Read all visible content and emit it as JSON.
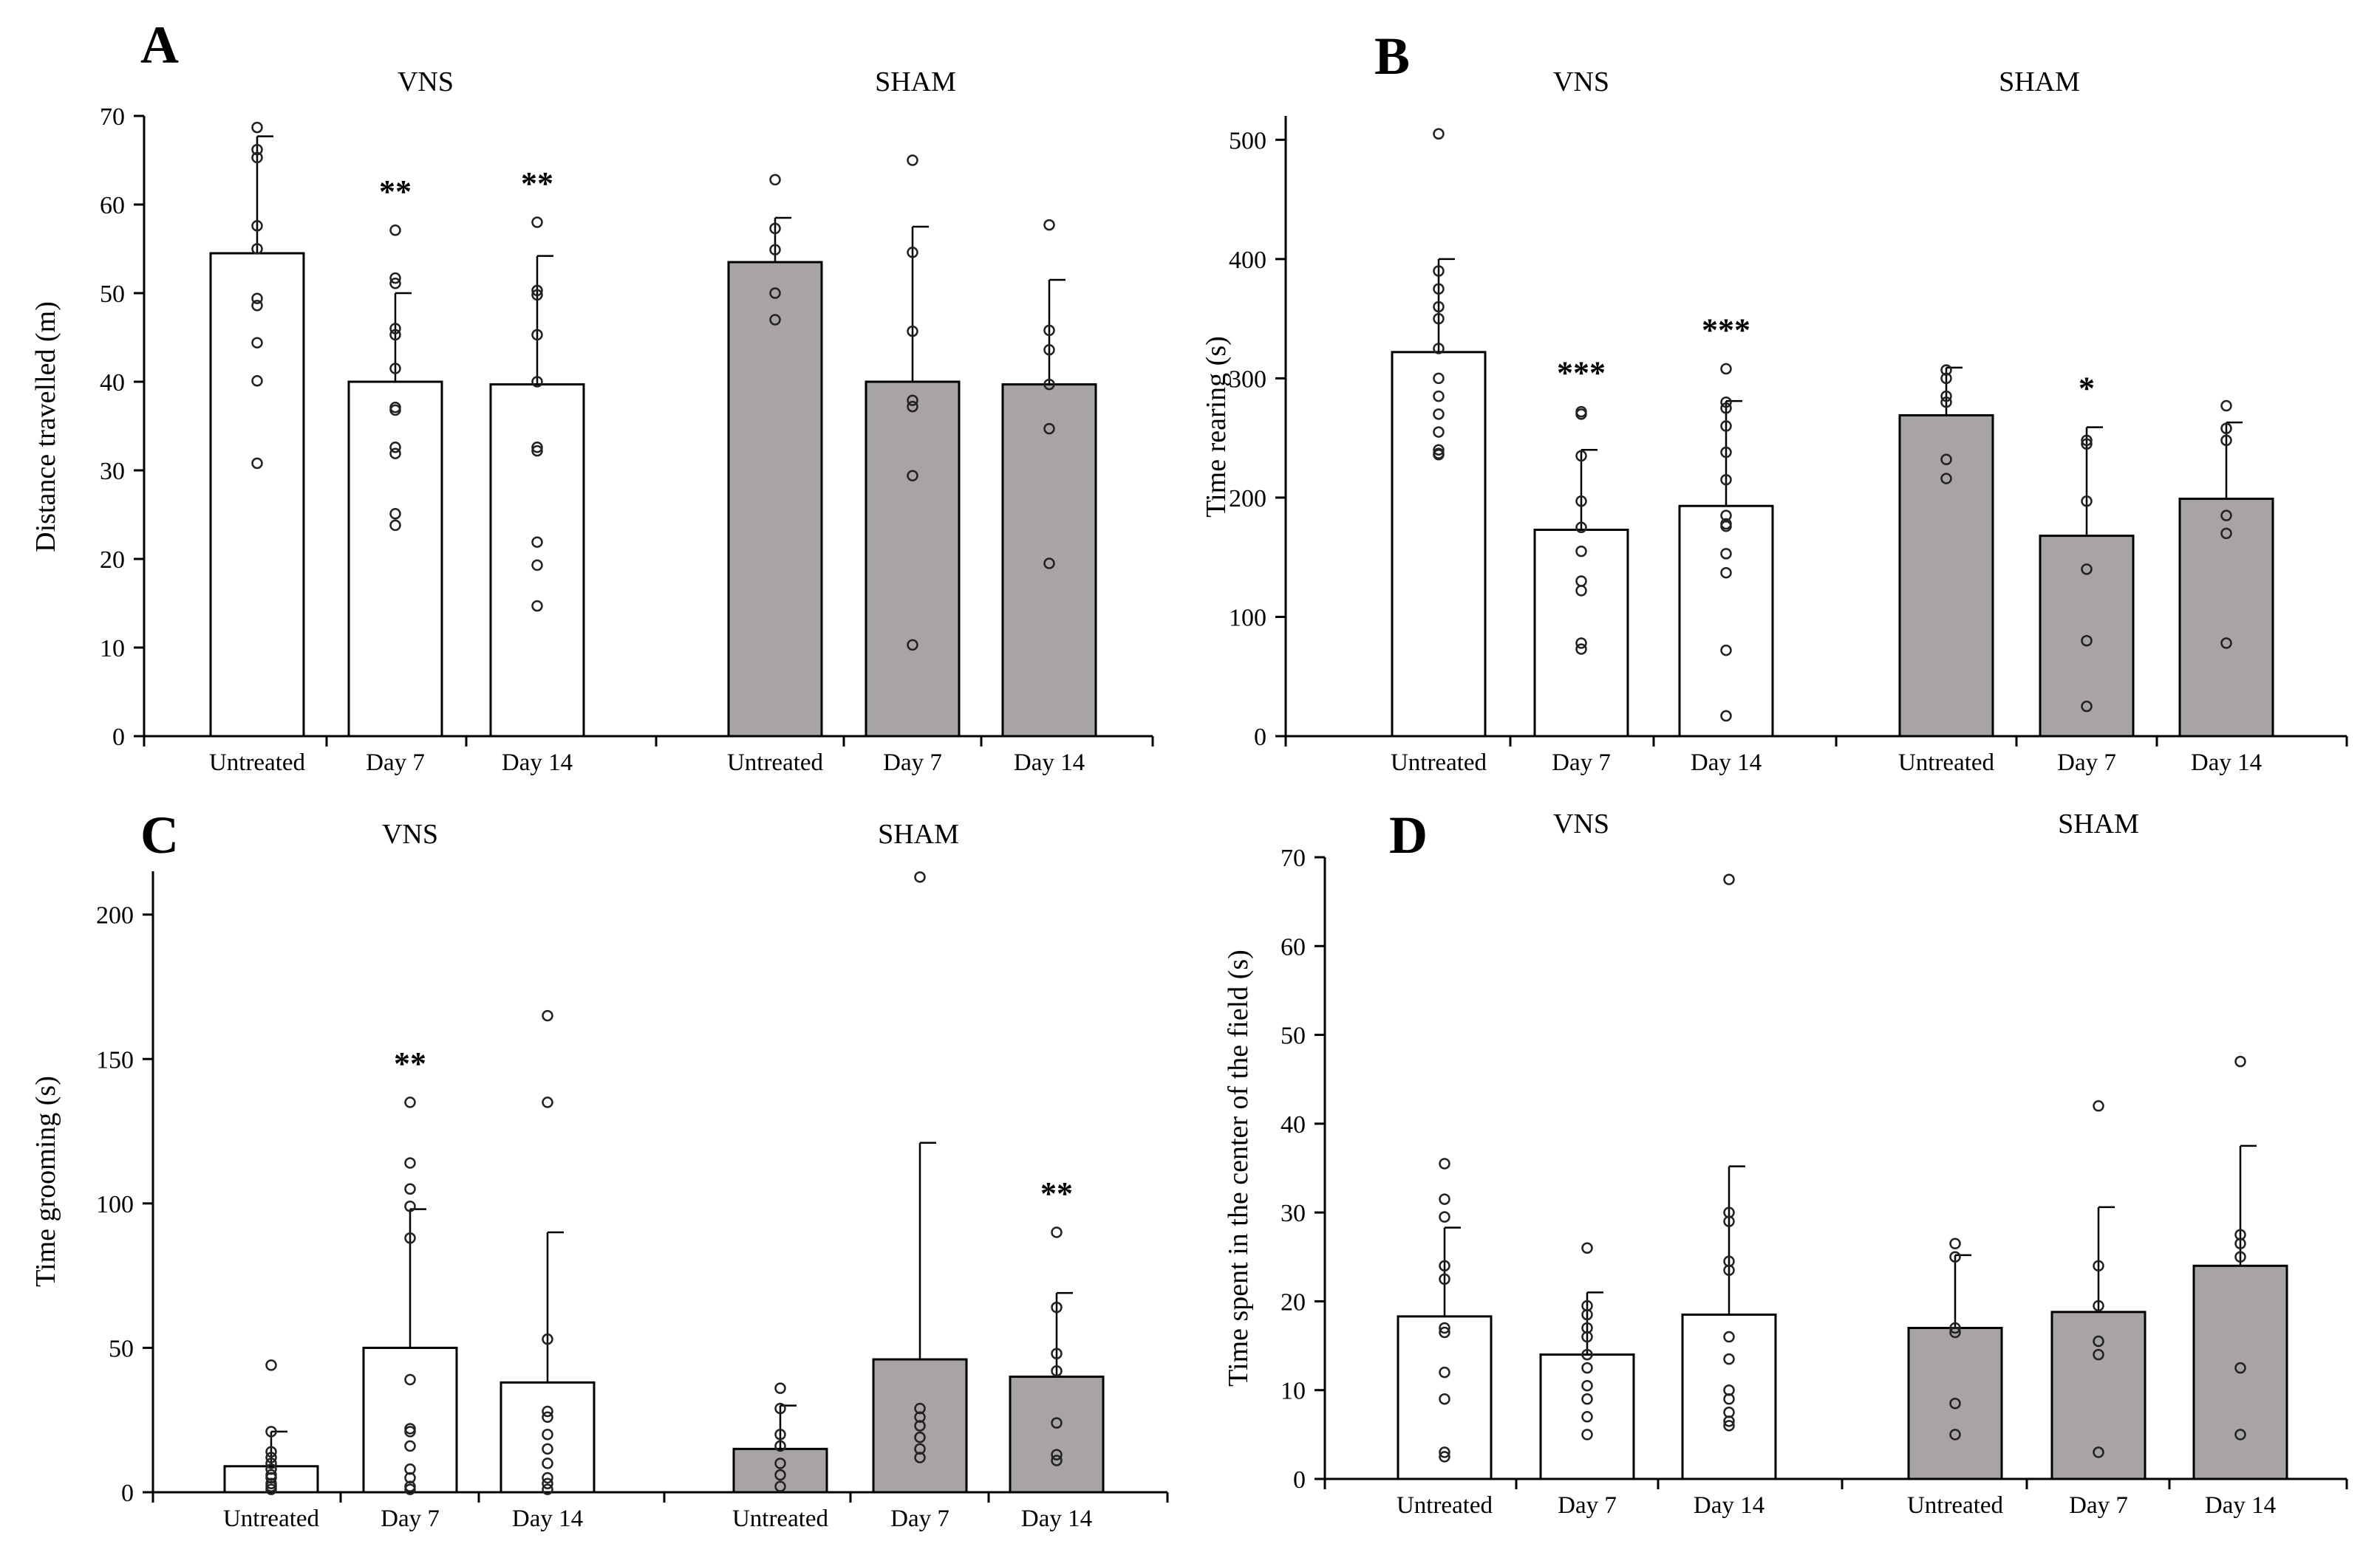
{
  "figure": {
    "colors": {
      "vns_fill": "#ffffff",
      "sham_fill": "#a8a4a3",
      "stroke": "#000000"
    }
  },
  "chart_data": [
    {
      "type": "bar",
      "panel": "A",
      "title": "",
      "xlabel": "",
      "ylabel": "Distance travelled (m)",
      "ylim": [
        0,
        70
      ],
      "yticks": [
        0,
        10,
        20,
        30,
        40,
        50,
        60,
        70
      ],
      "groups": [
        {
          "name": "VNS",
          "color": "#ffffff",
          "categories": [
            "Untreated",
            "Day 7",
            "Day 14"
          ],
          "values": [
            54.5,
            40,
            39.7
          ],
          "errors": [
            13.2,
            10,
            14.5
          ],
          "significance": [
            "",
            "**",
            "**"
          ],
          "points": [
            [
              68.7,
              66.2,
              65.3,
              57.6,
              55.0,
              49.4,
              48.6,
              44.4,
              40.1,
              30.8
            ],
            [
              57.1,
              51.7,
              51.1,
              46.0,
              45.3,
              41.5,
              37.1,
              36.8,
              32.6,
              31.9,
              25.1,
              23.8
            ],
            [
              58.0,
              50.3,
              49.8,
              45.3,
              40.0,
              32.6,
              32.2,
              21.9,
              19.3,
              14.7
            ]
          ]
        },
        {
          "name": "SHAM",
          "color": "#a8a4a3",
          "categories": [
            "Untreated",
            "Day 7",
            "Day 14"
          ],
          "values": [
            53.5,
            40,
            39.7
          ],
          "errors": [
            5,
            17.5,
            11.8
          ],
          "significance": [
            "",
            "",
            ""
          ],
          "points": [
            [
              62.8,
              57.3,
              54.9,
              50.0,
              47.0
            ],
            [
              65.0,
              54.6,
              45.7,
              37.9,
              37.2,
              29.4,
              10.3
            ],
            [
              57.7,
              45.8,
              43.6,
              39.7,
              34.7,
              19.5
            ]
          ]
        }
      ]
    },
    {
      "type": "bar",
      "panel": "B",
      "title": "",
      "xlabel": "",
      "ylabel": "Time rearing (s)",
      "ylim": [
        0,
        520
      ],
      "yticks": [
        0,
        100,
        200,
        300,
        400,
        500
      ],
      "groups": [
        {
          "name": "VNS",
          "color": "#ffffff",
          "categories": [
            "Untreated",
            "Day 7",
            "Day 14"
          ],
          "values": [
            322,
            173,
            193
          ],
          "errors": [
            78,
            67,
            88
          ],
          "significance": [
            "",
            "***",
            "***"
          ],
          "points": [
            [
              505,
              390,
              375,
              360,
              350,
              325,
              300,
              285,
              270,
              255,
              240,
              237,
              236
            ],
            [
              272,
              270,
              235,
              197,
              175,
              155,
              130,
              122,
              78,
              73
            ],
            [
              308,
              280,
              275,
              260,
              238,
              215,
              185,
              178,
              176,
              153,
              137,
              72,
              17
            ]
          ]
        },
        {
          "name": "SHAM",
          "color": "#a8a4a3",
          "categories": [
            "Untreated",
            "Day 7",
            "Day 14"
          ],
          "values": [
            269,
            168,
            199
          ],
          "errors": [
            40,
            91,
            64
          ],
          "significance": [
            "",
            "*",
            ""
          ],
          "points": [
            [
              307,
              300,
              285,
              280,
              232,
              216
            ],
            [
              248,
              245,
              197,
              140,
              80,
              25
            ],
            [
              277,
              258,
              248,
              185,
              170,
              78
            ]
          ]
        }
      ]
    },
    {
      "type": "bar",
      "panel": "C",
      "title": "",
      "xlabel": "",
      "ylabel": "Time grooming (s)",
      "ylim": [
        0,
        215
      ],
      "yticks": [
        0,
        50,
        100,
        150,
        200
      ],
      "groups": [
        {
          "name": "VNS",
          "color": "#ffffff",
          "categories": [
            "Untreated",
            "Day 7",
            "Day 14"
          ],
          "values": [
            9,
            50,
            38
          ],
          "errors": [
            12,
            48,
            52
          ],
          "significance": [
            "",
            "**",
            ""
          ],
          "points": [
            [
              44,
              21,
              14,
              12,
              10,
              8,
              6,
              5,
              3,
              2,
              1
            ],
            [
              135,
              114,
              105,
              99,
              88,
              39,
              22,
              21,
              16,
              8,
              5,
              2,
              1
            ],
            [
              165,
              135,
              53,
              28,
              26,
              20,
              15,
              10,
              5,
              3,
              1
            ]
          ]
        },
        {
          "name": "SHAM",
          "color": "#a8a4a3",
          "categories": [
            "Untreated",
            "Day 7",
            "Day 14"
          ],
          "values": [
            15,
            46,
            40
          ],
          "errors": [
            15,
            75,
            29
          ],
          "significance": [
            "",
            "",
            "**"
          ],
          "points": [
            [
              36,
              29,
              20,
              16,
              10,
              6,
              2
            ],
            [
              213,
              29,
              26,
              23,
              19,
              15,
              12
            ],
            [
              90,
              64,
              48,
              42,
              24,
              13,
              11
            ]
          ]
        }
      ]
    },
    {
      "type": "bar",
      "panel": "D",
      "title": "",
      "xlabel": "",
      "ylabel": "Time spent in the center of the field (s)",
      "ylim": [
        0,
        70
      ],
      "yticks": [
        0,
        10,
        20,
        30,
        40,
        50,
        60,
        70
      ],
      "groups": [
        {
          "name": "VNS",
          "color": "#ffffff",
          "categories": [
            "Untreated",
            "Day 7",
            "Day 14"
          ],
          "values": [
            18.3,
            14,
            18.5
          ],
          "errors": [
            10,
            7,
            16.7
          ],
          "significance": [
            "",
            "",
            ""
          ],
          "points": [
            [
              35.5,
              31.5,
              29.5,
              24.0,
              22.5,
              17.0,
              16.5,
              12.0,
              9.0,
              3.0,
              2.5
            ],
            [
              26.0,
              19.5,
              18.5,
              17.0,
              16.0,
              14.0,
              12.5,
              10.5,
              9.0,
              7.0,
              5.0
            ],
            [
              67.5,
              30.0,
              29.0,
              24.5,
              23.5,
              16.0,
              13.5,
              10.0,
              9.0,
              7.5,
              6.5,
              6.0
            ]
          ]
        },
        {
          "name": "SHAM",
          "color": "#a8a4a3",
          "categories": [
            "Untreated",
            "Day 7",
            "Day 14"
          ],
          "values": [
            17,
            18.8,
            24
          ],
          "errors": [
            8.2,
            11.8,
            13.5
          ],
          "significance": [
            "",
            "",
            ""
          ],
          "points": [
            [
              26.5,
              25.0,
              17.0,
              16.5,
              8.5,
              5.0
            ],
            [
              42.0,
              24.0,
              19.5,
              15.5,
              14.0,
              3.0
            ],
            [
              47.0,
              27.5,
              26.5,
              25.0,
              12.5,
              5.0
            ]
          ]
        }
      ]
    }
  ]
}
